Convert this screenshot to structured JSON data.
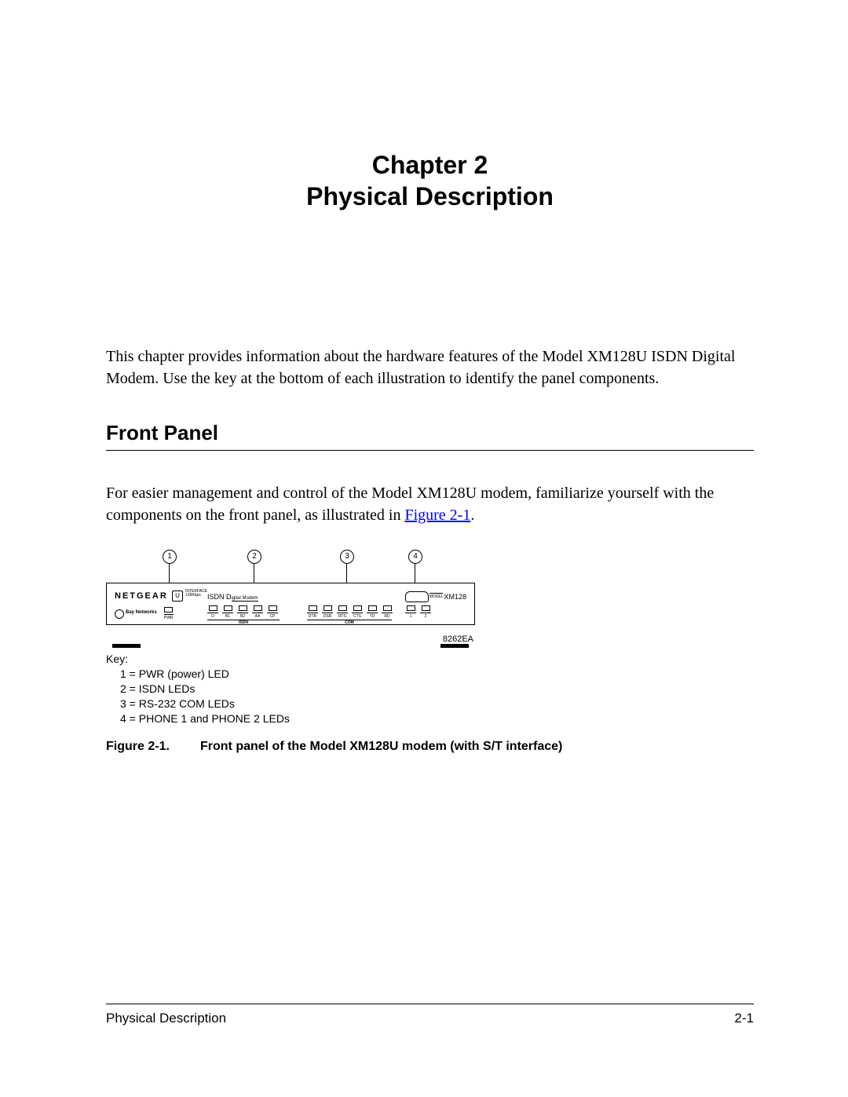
{
  "chapter": {
    "line1": "Chapter 2",
    "line2": "Physical Description"
  },
  "intro": "This chapter provides information about the hardware features of the Model XM128U ISDN Digital Modem. Use the key at the bottom of each illustration to identify the panel components.",
  "section_heading": "Front Panel",
  "body_prefix": "For easier management and control of the Model XM128U modem, familiarize yourself with the components on the front panel, as illustrated in ",
  "body_link_text": "Figure 2-1",
  "body_suffix": ".",
  "figure": {
    "callouts": [
      "1",
      "2",
      "3",
      "4"
    ],
    "brand": "NETGEAR",
    "u_icon": "U",
    "interface_line1": "INTERFACE",
    "interface_line2": "128Kbps",
    "isdn_text": "ISDN D",
    "isdn_sub": "igital Modem",
    "bay_networks": "Bay Networks",
    "pwr_label": "PWR",
    "isdn_leds": [
      "D",
      "B1",
      "B2",
      "AA",
      "CP"
    ],
    "com_leds": [
      "DTR",
      "DSR",
      "RTS",
      "CTS",
      "TD",
      "RD"
    ],
    "phone_leds": [
      "1",
      "2"
    ],
    "group_isdn": "ISDN",
    "group_com": "COM",
    "model_small": "MODEL",
    "model": "XM128",
    "fig_id": "8262EA"
  },
  "key": {
    "title": "Key:",
    "lines": [
      "1 = PWR (power) LED",
      "2 = ISDN LEDs",
      "3 = RS-232 COM LEDs",
      "4 = PHONE 1 and PHONE 2 LEDs"
    ]
  },
  "caption": {
    "number": "Figure 2-1.",
    "text": "Front panel of the Model XM128U modem (with S/T interface)"
  },
  "footer": {
    "left": "Physical Description",
    "right": "2-1"
  },
  "colors": {
    "link": "#0000ee",
    "text": "#000000",
    "bg": "#ffffff"
  }
}
